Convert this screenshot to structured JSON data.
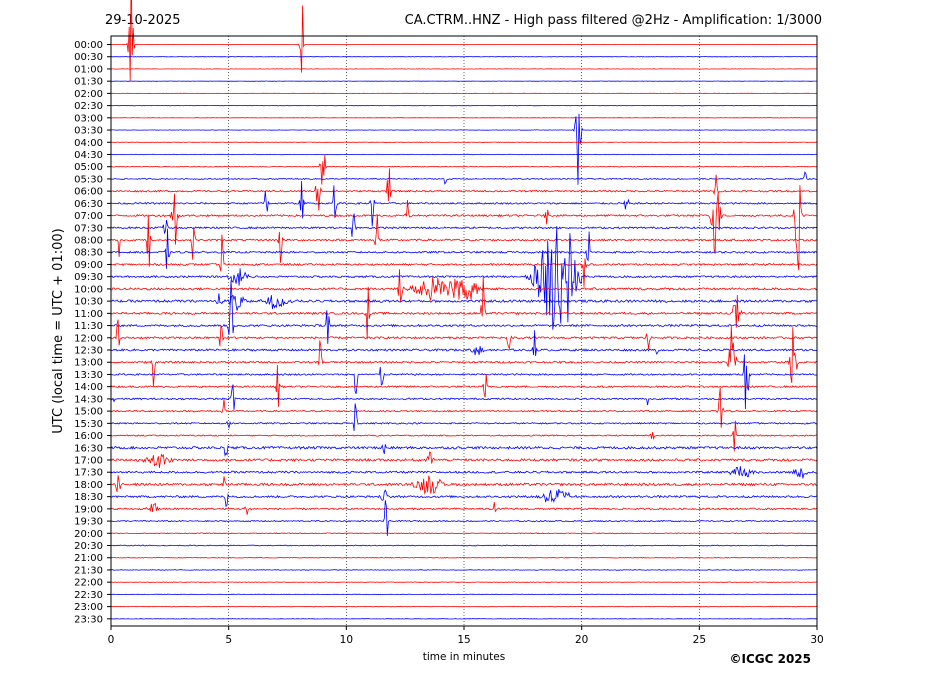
{
  "chart_data": {
    "type": "line",
    "date": "29-10-2025",
    "title": "CA.CTRM..HNZ - High pass filtered @2Hz - Amplification: 1/3000",
    "ylabel": "UTC (local time = UTC + 01:00)",
    "xlabel": "time in minutes",
    "copyright": "©ICGC 2025",
    "xlim": [
      0,
      30
    ],
    "x_ticks": [
      "0",
      "5",
      "10",
      "15",
      "20",
      "25",
      "30"
    ],
    "y_ticks": [
      "00:00",
      "00:30",
      "01:00",
      "01:30",
      "02:00",
      "02:30",
      "03:00",
      "03:30",
      "04:00",
      "04:30",
      "05:00",
      "05:30",
      "06:00",
      "06:30",
      "07:00",
      "07:30",
      "08:00",
      "08:30",
      "09:00",
      "09:30",
      "10:00",
      "10:30",
      "11:00",
      "11:30",
      "12:00",
      "12:30",
      "13:00",
      "13:30",
      "14:00",
      "14:30",
      "15:00",
      "15:30",
      "16:00",
      "16:30",
      "17:00",
      "17:30",
      "18:00",
      "18:30",
      "19:00",
      "19:30",
      "20:00",
      "20:30",
      "21:00",
      "21:30",
      "22:00",
      "22:30",
      "23:00",
      "23:30"
    ],
    "grid": "vertical dotted lines at 5-minute intervals",
    "colors": {
      "even_rows": "#ff0000",
      "odd_rows": "#0000ff"
    },
    "row_noise": [
      0.15,
      0.2,
      0.15,
      0.15,
      0.15,
      0.2,
      0.15,
      0.2,
      0.2,
      0.25,
      0.35,
      0.5,
      0.8,
      0.8,
      0.9,
      0.9,
      0.9,
      0.9,
      0.9,
      0.9,
      1.1,
      1.2,
      1.0,
      1.0,
      1.0,
      1.0,
      0.9,
      0.8,
      0.8,
      0.8,
      0.7,
      0.7,
      0.6,
      1.2,
      1.2,
      1.0,
      1.2,
      1.0,
      0.8,
      0.6,
      0.4,
      0.4,
      0.3,
      0.3,
      0.25,
      0.25,
      0.2,
      0.2
    ],
    "events": [
      {
        "row": 0,
        "t": 0.85,
        "amp": 100,
        "w": 0.08
      },
      {
        "row": 0,
        "t": 8.1,
        "amp": 75,
        "w": 0.06
      },
      {
        "row": 7,
        "t": 19.85,
        "amp": 55,
        "w": 0.1
      },
      {
        "row": 10,
        "t": 9.0,
        "amp": 40,
        "w": 0.08
      },
      {
        "row": 11,
        "t": 14.2,
        "amp": 10,
        "w": 0.05
      },
      {
        "row": 11,
        "t": 29.5,
        "amp": 10,
        "w": 0.05
      },
      {
        "row": 12,
        "t": 8.8,
        "amp": 30,
        "w": 0.08
      },
      {
        "row": 12,
        "t": 11.8,
        "amp": 28,
        "w": 0.06
      },
      {
        "row": 12,
        "t": 25.7,
        "amp": 18,
        "w": 0.06
      },
      {
        "row": 13,
        "t": 6.6,
        "amp": 25,
        "w": 0.06
      },
      {
        "row": 13,
        "t": 8.1,
        "amp": 25,
        "w": 0.06
      },
      {
        "row": 13,
        "t": 9.5,
        "amp": 30,
        "w": 0.06
      },
      {
        "row": 13,
        "t": 11.1,
        "amp": 30,
        "w": 0.06
      },
      {
        "row": 13,
        "t": 21.9,
        "amp": 25,
        "w": 0.06
      },
      {
        "row": 14,
        "t": 2.7,
        "amp": 45,
        "w": 0.1
      },
      {
        "row": 14,
        "t": 12.6,
        "amp": 30,
        "w": 0.06
      },
      {
        "row": 14,
        "t": 18.5,
        "amp": 25,
        "w": 0.06
      },
      {
        "row": 14,
        "t": 25.7,
        "amp": 50,
        "w": 0.15
      },
      {
        "row": 14,
        "t": 29.2,
        "amp": 60,
        "w": 0.12
      },
      {
        "row": 15,
        "t": 2.3,
        "amp": 30,
        "w": 0.06
      },
      {
        "row": 15,
        "t": 10.3,
        "amp": 25,
        "w": 0.06
      },
      {
        "row": 16,
        "t": 0.35,
        "amp": 35,
        "w": 0.06
      },
      {
        "row": 16,
        "t": 1.6,
        "amp": 40,
        "w": 0.06
      },
      {
        "row": 16,
        "t": 3.5,
        "amp": 35,
        "w": 0.06
      },
      {
        "row": 16,
        "t": 7.2,
        "amp": 30,
        "w": 0.06
      },
      {
        "row": 16,
        "t": 11.3,
        "amp": 45,
        "w": 0.06
      },
      {
        "row": 17,
        "t": 2.4,
        "amp": 30,
        "w": 0.06
      },
      {
        "row": 17,
        "t": 20.3,
        "amp": 25,
        "w": 0.06
      },
      {
        "row": 18,
        "t": 4.7,
        "amp": 40,
        "w": 0.06
      },
      {
        "row": 18,
        "t": 20.1,
        "amp": 30,
        "w": 0.06
      },
      {
        "row": 19,
        "t": 5.4,
        "amp": 10,
        "w": 0.3
      },
      {
        "row": 19,
        "t": 18.7,
        "amp": 55,
        "w": 0.6
      },
      {
        "row": 19,
        "t": 19.4,
        "amp": 50,
        "w": 0.4
      },
      {
        "row": 20,
        "t": 12.3,
        "amp": 35,
        "w": 0.08
      },
      {
        "row": 20,
        "t": 13.8,
        "amp": 12,
        "w": 0.8
      },
      {
        "row": 20,
        "t": 15.0,
        "amp": 15,
        "w": 0.6
      },
      {
        "row": 21,
        "t": 4.6,
        "amp": 12,
        "w": 0.1
      },
      {
        "row": 21,
        "t": 5.3,
        "amp": 10,
        "w": 0.3
      },
      {
        "row": 21,
        "t": 7.0,
        "amp": 8,
        "w": 0.4
      },
      {
        "row": 22,
        "t": 10.9,
        "amp": 45,
        "w": 0.06
      },
      {
        "row": 22,
        "t": 15.8,
        "amp": 40,
        "w": 0.06
      },
      {
        "row": 22,
        "t": 26.6,
        "amp": 40,
        "w": 0.12
      },
      {
        "row": 23,
        "t": 5.1,
        "amp": 50,
        "w": 0.08
      },
      {
        "row": 23,
        "t": 9.2,
        "amp": 30,
        "w": 0.06
      },
      {
        "row": 24,
        "t": 0.3,
        "amp": 25,
        "w": 0.06
      },
      {
        "row": 24,
        "t": 4.7,
        "amp": 35,
        "w": 0.06
      },
      {
        "row": 24,
        "t": 16.9,
        "amp": 30,
        "w": 0.06
      },
      {
        "row": 24,
        "t": 22.8,
        "amp": 30,
        "w": 0.06
      },
      {
        "row": 25,
        "t": 15.6,
        "amp": 6,
        "w": 0.3
      },
      {
        "row": 25,
        "t": 18.0,
        "amp": 30,
        "w": 0.06
      },
      {
        "row": 25,
        "t": 23.2,
        "amp": 8,
        "w": 0.06
      },
      {
        "row": 26,
        "t": 1.8,
        "amp": 25,
        "w": 0.06
      },
      {
        "row": 26,
        "t": 8.9,
        "amp": 35,
        "w": 0.06
      },
      {
        "row": 26,
        "t": 26.4,
        "amp": 50,
        "w": 0.12
      },
      {
        "row": 26,
        "t": 29.0,
        "amp": 55,
        "w": 0.1
      },
      {
        "row": 27,
        "t": 10.4,
        "amp": 30,
        "w": 0.06
      },
      {
        "row": 27,
        "t": 11.5,
        "amp": 20,
        "w": 0.06
      },
      {
        "row": 27,
        "t": 27.0,
        "amp": 45,
        "w": 0.1
      },
      {
        "row": 28,
        "t": 7.1,
        "amp": 30,
        "w": 0.06
      },
      {
        "row": 28,
        "t": 15.9,
        "amp": 25,
        "w": 0.06
      },
      {
        "row": 29,
        "t": 0.1,
        "amp": 4,
        "w": 0.06
      },
      {
        "row": 29,
        "t": 5.2,
        "amp": 40,
        "w": 0.06
      },
      {
        "row": 29,
        "t": 22.8,
        "amp": 12,
        "w": 0.06
      },
      {
        "row": 30,
        "t": 4.8,
        "amp": 20,
        "w": 0.06
      },
      {
        "row": 30,
        "t": 25.9,
        "amp": 25,
        "w": 0.08
      },
      {
        "row": 31,
        "t": 10.4,
        "amp": 35,
        "w": 0.06
      },
      {
        "row": 31,
        "t": 5.0,
        "amp": 10,
        "w": 0.06
      },
      {
        "row": 32,
        "t": 23.0,
        "amp": 8,
        "w": 0.06
      },
      {
        "row": 32,
        "t": 26.5,
        "amp": 20,
        "w": 0.06
      },
      {
        "row": 33,
        "t": 4.9,
        "amp": 25,
        "w": 0.06
      },
      {
        "row": 33,
        "t": 11.6,
        "amp": 10,
        "w": 0.06
      },
      {
        "row": 34,
        "t": 2.0,
        "amp": 8,
        "w": 0.5
      },
      {
        "row": 34,
        "t": 13.5,
        "amp": 10,
        "w": 0.2
      },
      {
        "row": 34,
        "t": 4.9,
        "amp": 8,
        "w": 0.06
      },
      {
        "row": 35,
        "t": 26.8,
        "amp": 8,
        "w": 0.4
      },
      {
        "row": 35,
        "t": 29.3,
        "amp": 6,
        "w": 0.3
      },
      {
        "row": 36,
        "t": 0.3,
        "amp": 10,
        "w": 0.1
      },
      {
        "row": 36,
        "t": 13.5,
        "amp": 10,
        "w": 0.5
      },
      {
        "row": 36,
        "t": 4.8,
        "amp": 10,
        "w": 0.06
      },
      {
        "row": 37,
        "t": 11.6,
        "amp": 12,
        "w": 0.1
      },
      {
        "row": 37,
        "t": 18.9,
        "amp": 10,
        "w": 0.5
      },
      {
        "row": 37,
        "t": 4.9,
        "amp": 25,
        "w": 0.06
      },
      {
        "row": 38,
        "t": 1.8,
        "amp": 6,
        "w": 0.2
      },
      {
        "row": 38,
        "t": 5.8,
        "amp": 6,
        "w": 0.1
      },
      {
        "row": 38,
        "t": 16.3,
        "amp": 8,
        "w": 0.06
      },
      {
        "row": 39,
        "t": 11.7,
        "amp": 35,
        "w": 0.06
      }
    ]
  }
}
